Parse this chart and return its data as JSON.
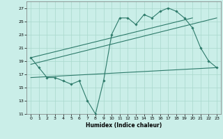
{
  "xlabel": "Humidex (Indice chaleur)",
  "background_color": "#caeee8",
  "grid_color": "#a8d8cc",
  "line_color": "#2d7a6a",
  "xlim": [
    -0.5,
    23.5
  ],
  "ylim": [
    11,
    28
  ],
  "yticks": [
    11,
    13,
    15,
    17,
    19,
    21,
    23,
    25,
    27
  ],
  "xticks": [
    0,
    1,
    2,
    3,
    4,
    5,
    6,
    7,
    8,
    9,
    10,
    11,
    12,
    13,
    14,
    15,
    16,
    17,
    18,
    19,
    20,
    21,
    22,
    23
  ],
  "main_x": [
    0,
    1,
    2,
    3,
    4,
    5,
    6,
    7,
    8,
    9,
    10,
    11,
    12,
    13,
    14,
    15,
    16,
    17,
    18,
    19,
    20,
    21,
    22,
    23
  ],
  "main_y": [
    19.5,
    18.0,
    16.5,
    16.5,
    16.0,
    15.5,
    16.0,
    13.0,
    11.0,
    16.0,
    23.0,
    25.5,
    25.5,
    24.5,
    26.0,
    25.5,
    26.5,
    27.0,
    26.5,
    25.5,
    24.0,
    21.0,
    19.0,
    18.0
  ],
  "trend1_x": [
    0,
    20
  ],
  "trend1_y": [
    19.5,
    25.5
  ],
  "trend2_x": [
    0,
    23
  ],
  "trend2_y": [
    16.5,
    18.0
  ],
  "trend3_x": [
    0,
    23
  ],
  "trend3_y": [
    18.5,
    25.5
  ]
}
